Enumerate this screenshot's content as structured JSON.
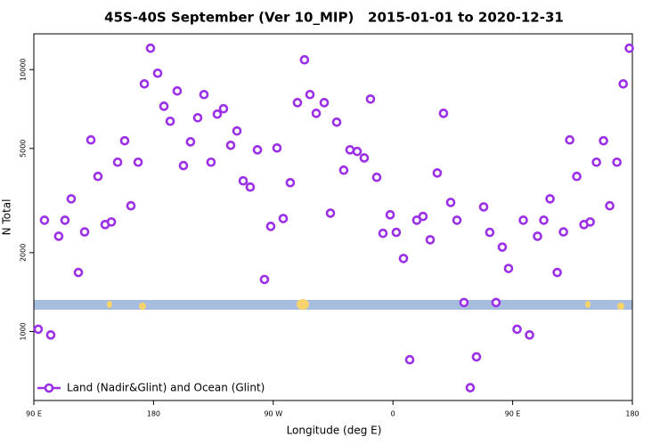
{
  "chart_data": {
    "type": "scatter",
    "title": "45S-40S September (Ver 10_MIP)   2015-01-01 to 2020-12-31",
    "x_label": "Longitude (deg E)",
    "y_label": "N Total",
    "x": [
      93.3,
      98.0,
      102.7,
      108.7,
      113.4,
      118.1,
      123.5,
      128.2,
      132.9,
      138.2,
      143.6,
      148.3,
      153.0,
      158.3,
      163.0,
      168.4,
      173.1,
      177.7,
      183.1,
      187.8,
      192.5,
      197.8,
      202.5,
      207.8,
      213.2,
      217.9,
      223.2,
      227.9,
      232.6,
      238.0,
      242.7,
      247.4,
      252.7,
      258.1,
      263.4,
      268.1,
      272.8,
      277.5,
      282.8,
      288.2,
      293.5,
      297.6,
      302.3,
      308.3,
      313.0,
      317.7,
      323.0,
      327.7,
      333.1,
      338.4,
      343.1,
      347.8,
      352.5,
      357.9,
      362.5,
      367.9,
      372.6,
      377.9,
      382.6,
      388.0,
      393.3,
      398.0,
      403.4,
      408.1,
      413.4,
      418.1,
      422.8,
      428.2,
      432.8,
      437.5,
      442.2,
      446.9,
      453.3,
      458.0,
      462.7,
      468.7,
      473.4,
      478.1,
      483.5,
      488.2,
      492.9,
      498.2,
      503.6,
      508.3,
      513.0,
      518.3,
      523.0,
      528.4,
      533.1,
      537.7
    ],
    "series": [
      {
        "name": "Land (Nadir&Glint) and Ocean (Glint)",
        "color": "#9b30e6",
        "values": [
          1020,
          2660,
          970,
          2310,
          2660,
          3210,
          1680,
          2400,
          5390,
          3910,
          2560,
          2620,
          4430,
          5350,
          3020,
          4430,
          8820,
          12070,
          9690,
          7250,
          6350,
          8290,
          4300,
          5300,
          6550,
          8030,
          4430,
          6760,
          7090,
          5140,
          5830,
          3760,
          3560,
          4940,
          1580,
          2520,
          5020,
          2700,
          3700,
          7480,
          10900,
          8030,
          6810,
          7480,
          2830,
          6300,
          4130,
          4940,
          4870,
          4600,
          7720,
          3880,
          2370,
          2790,
          2390,
          1900,
          780,
          2660,
          2750,
          2240,
          4030,
          6810,
          3110,
          2660,
          1290,
          610,
          800,
          2990,
          2390,
          1290,
          2100,
          1740,
          1020,
          2660,
          970,
          2310,
          2660,
          3210,
          1680,
          2400,
          5390,
          3910,
          2560,
          2620,
          4430,
          5350,
          3020,
          4430,
          8820,
          12070
        ]
      }
    ],
    "xlim": [
      90,
      540
    ],
    "xticks": [
      {
        "value": 90,
        "label": "90 E"
      },
      {
        "value": 180,
        "label": "180"
      },
      {
        "value": 270,
        "label": "90 W"
      },
      {
        "value": 360,
        "label": "0"
      },
      {
        "value": 450,
        "label": "90 E"
      },
      {
        "value": 540,
        "label": "180"
      }
    ],
    "ylim": [
      545,
      13700
    ],
    "yticks": [
      1000,
      2000,
      5000,
      10000
    ],
    "y_log": true,
    "legend": "lower-left"
  }
}
